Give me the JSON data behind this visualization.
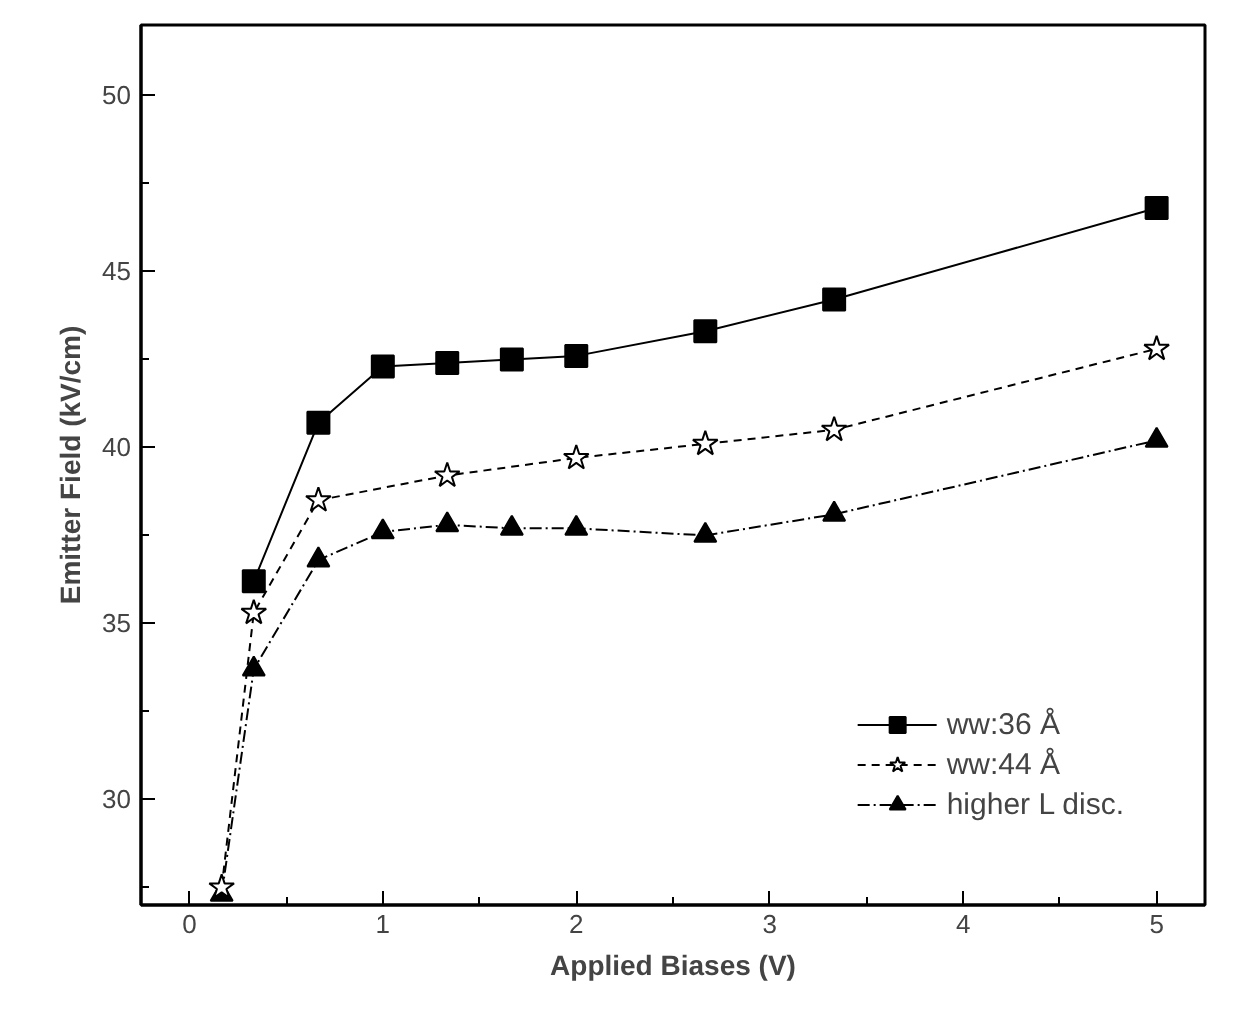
{
  "chart_data": {
    "type": "line",
    "xlabel": "Applied Biases (V)",
    "ylabel": "Emitter Field (kV/cm)",
    "xlim": [
      -0.25,
      5.25
    ],
    "ylim": [
      27,
      52
    ],
    "xticks": [
      0,
      1,
      2,
      3,
      4,
      5
    ],
    "yticks": [
      30,
      35,
      40,
      45,
      50
    ],
    "grid": false,
    "legend": "bottom right",
    "series": [
      {
        "name": "ww:36 Å",
        "color": "#000000",
        "marker": "square",
        "line_style": "solid",
        "x": [
          0.333,
          0.667,
          1,
          1.333,
          1.667,
          2,
          2.667,
          3.333,
          5
        ],
        "values": [
          36.2,
          40.7,
          42.3,
          42.4,
          42.5,
          42.6,
          43.3,
          44.2,
          46.8
        ]
      },
      {
        "name": "ww:44 Å",
        "color": "#000000",
        "marker": "star",
        "line_style": "dashed",
        "x": [
          0.167,
          0.333,
          0.667,
          1.333,
          2,
          2.667,
          3.333,
          5
        ],
        "values": [
          27.5,
          35.3,
          38.5,
          39.2,
          39.7,
          40.1,
          40.5,
          42.8
        ]
      },
      {
        "name": "higher L disc.",
        "color": "#000000",
        "marker": "triangle",
        "line_style": "dashdot",
        "x": [
          0.167,
          0.333,
          0.667,
          1,
          1.333,
          1.667,
          2,
          2.667,
          3.333,
          5
        ],
        "values": [
          27.3,
          33.7,
          36.8,
          37.6,
          37.8,
          37.7,
          37.7,
          37.5,
          38.1,
          40.2
        ]
      }
    ]
  }
}
